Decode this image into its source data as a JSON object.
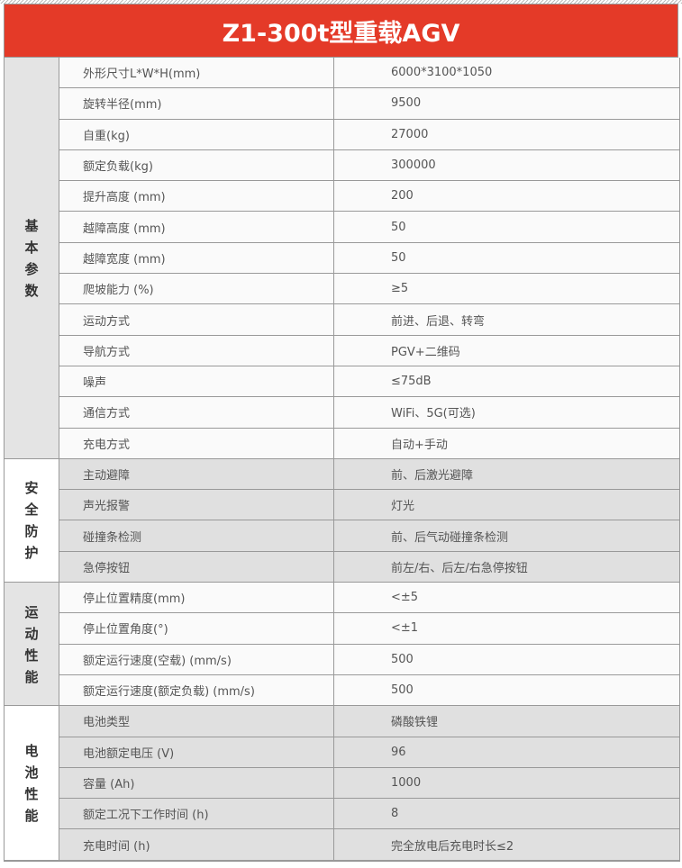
{
  "title": "Z1-300t型重载AGV",
  "sections": [
    {
      "label": "基本参数",
      "rows": [
        [
          "外形尺寸L*W*H(mm)",
          "6000*3100*1050"
        ],
        [
          "旋转半径(mm)",
          "9500"
        ],
        [
          "自重(kg)",
          "27000"
        ],
        [
          "额定负载(kg)",
          "300000"
        ],
        [
          "提升高度 (mm)",
          "200"
        ],
        [
          "越障高度 (mm)",
          "50"
        ],
        [
          "越障宽度 (mm)",
          "50"
        ],
        [
          "爬坡能力 (%)",
          "≥5"
        ],
        [
          "运动方式",
          "前进、后退、转弯"
        ],
        [
          "导航方式",
          "PGV+二维码"
        ],
        [
          "噪声",
          "≤75dB"
        ],
        [
          "通信方式",
          "WiFi、5G(可选)"
        ],
        [
          "充电方式",
          "自动+手动"
        ]
      ]
    },
    {
      "label": "安全防护",
      "rows": [
        [
          "主动避障",
          "前、后激光避障"
        ],
        [
          "声光报警",
          "灯光"
        ],
        [
          "碰撞条检测",
          "前、后气动碰撞条检测"
        ],
        [
          "急停按钮",
          "前左/右、后左/右急停按钮"
        ]
      ]
    },
    {
      "label": "运动性能",
      "rows": [
        [
          "停止位置精度(mm)",
          "<±5"
        ],
        [
          "停止位置角度(°)",
          "<±1"
        ],
        [
          "额定运行速度(空载) (mm/s)",
          "500"
        ],
        [
          "额定运行速度(额定负载) (mm/s)",
          "500"
        ]
      ]
    },
    {
      "label": "电池性能",
      "rows": [
        [
          "电池类型",
          "磷酸铁锂"
        ],
        [
          "电池额定电压 (V)",
          "96"
        ],
        [
          "容量 (Ah)",
          "1000"
        ],
        [
          "额定工况下工作时间 (h)",
          "8"
        ],
        [
          "充电时间 (h)",
          "完全放电后充电时长≤2"
        ]
      ]
    }
  ],
  "colors": {
    "header": "#e43a28"
  }
}
